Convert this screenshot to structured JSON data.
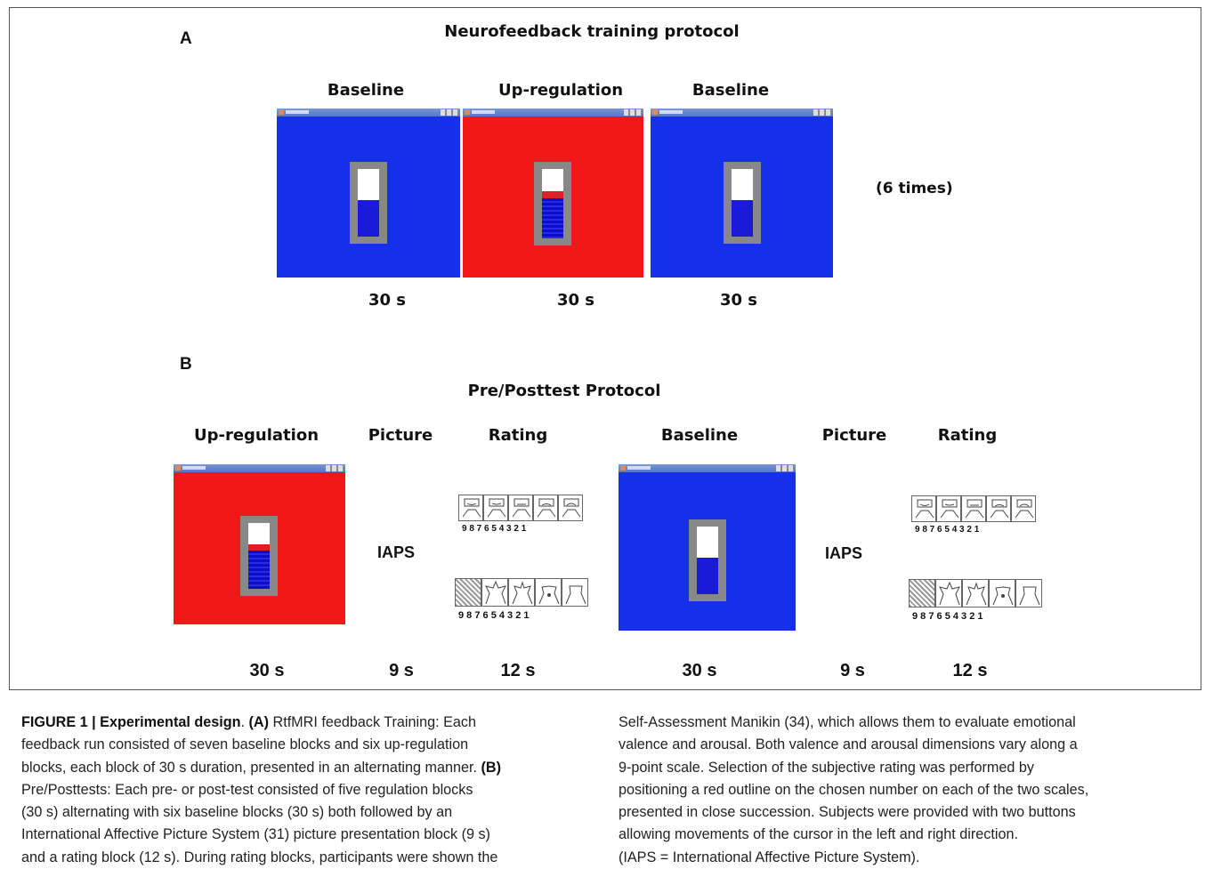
{
  "panel_a": {
    "letter": "A",
    "title": "Neurofeedback training protocol",
    "headings": [
      "Baseline",
      "Up-regulation",
      "Baseline"
    ],
    "durations": [
      "30 s",
      "30 s",
      "30 s"
    ],
    "repeat_note": "(6 times)"
  },
  "panel_b": {
    "letter": "B",
    "title": "Pre/Posttest Protocol",
    "headings": [
      "Up-regulation",
      "Picture",
      "Rating",
      "Baseline",
      "Picture",
      "Rating"
    ],
    "iaps_label": "IAPS",
    "durations": [
      "30 s",
      "9 s",
      "12 s",
      "30 s",
      "9 s",
      "12 s"
    ],
    "scale_numbers": "9 8 7 6 5 4 3 2 1"
  },
  "colors": {
    "baseline": "#1530e8",
    "upregulation": "#f01818",
    "therm_fill": "#1a1ad8",
    "therm_frame": "#888888"
  },
  "caption": {
    "label": "FIGURE 1 | Experimental design",
    "dot": ".",
    "a_tag": "(A)",
    "a_text": "RtfMRI feedback Training: Each",
    "line2": "feedback run consisted of seven baseline blocks and six up-regulation",
    "line3": "blocks, each block of 30 s duration, presented in an alternating manner.",
    "b_tag": "(B)",
    "line4": "Pre/Posttests: Each pre- or post-test consisted of five regulation blocks",
    "line5": "(30 s) alternating with six baseline blocks (30 s) both followed by an",
    "line6": "International Affective Picture System (31) picture presentation block (9 s)",
    "line7": "and a rating block (12 s). During rating blocks, participants were shown the",
    "r1": "Self-Assessment Manikin (34), which allows them to evaluate emotional",
    "r2": "valence and arousal. Both valence and arousal dimensions vary along a",
    "r3": "9-point scale. Selection of the subjective rating was performed by",
    "r4": "positioning a red outline on the chosen number on each of the two scales,",
    "r5": "presented in close succession. Subjects were provided with two buttons",
    "r6": "allowing movements of the cursor in the left and right direction.",
    "r7": "(IAPS = International Affective Picture System)."
  }
}
